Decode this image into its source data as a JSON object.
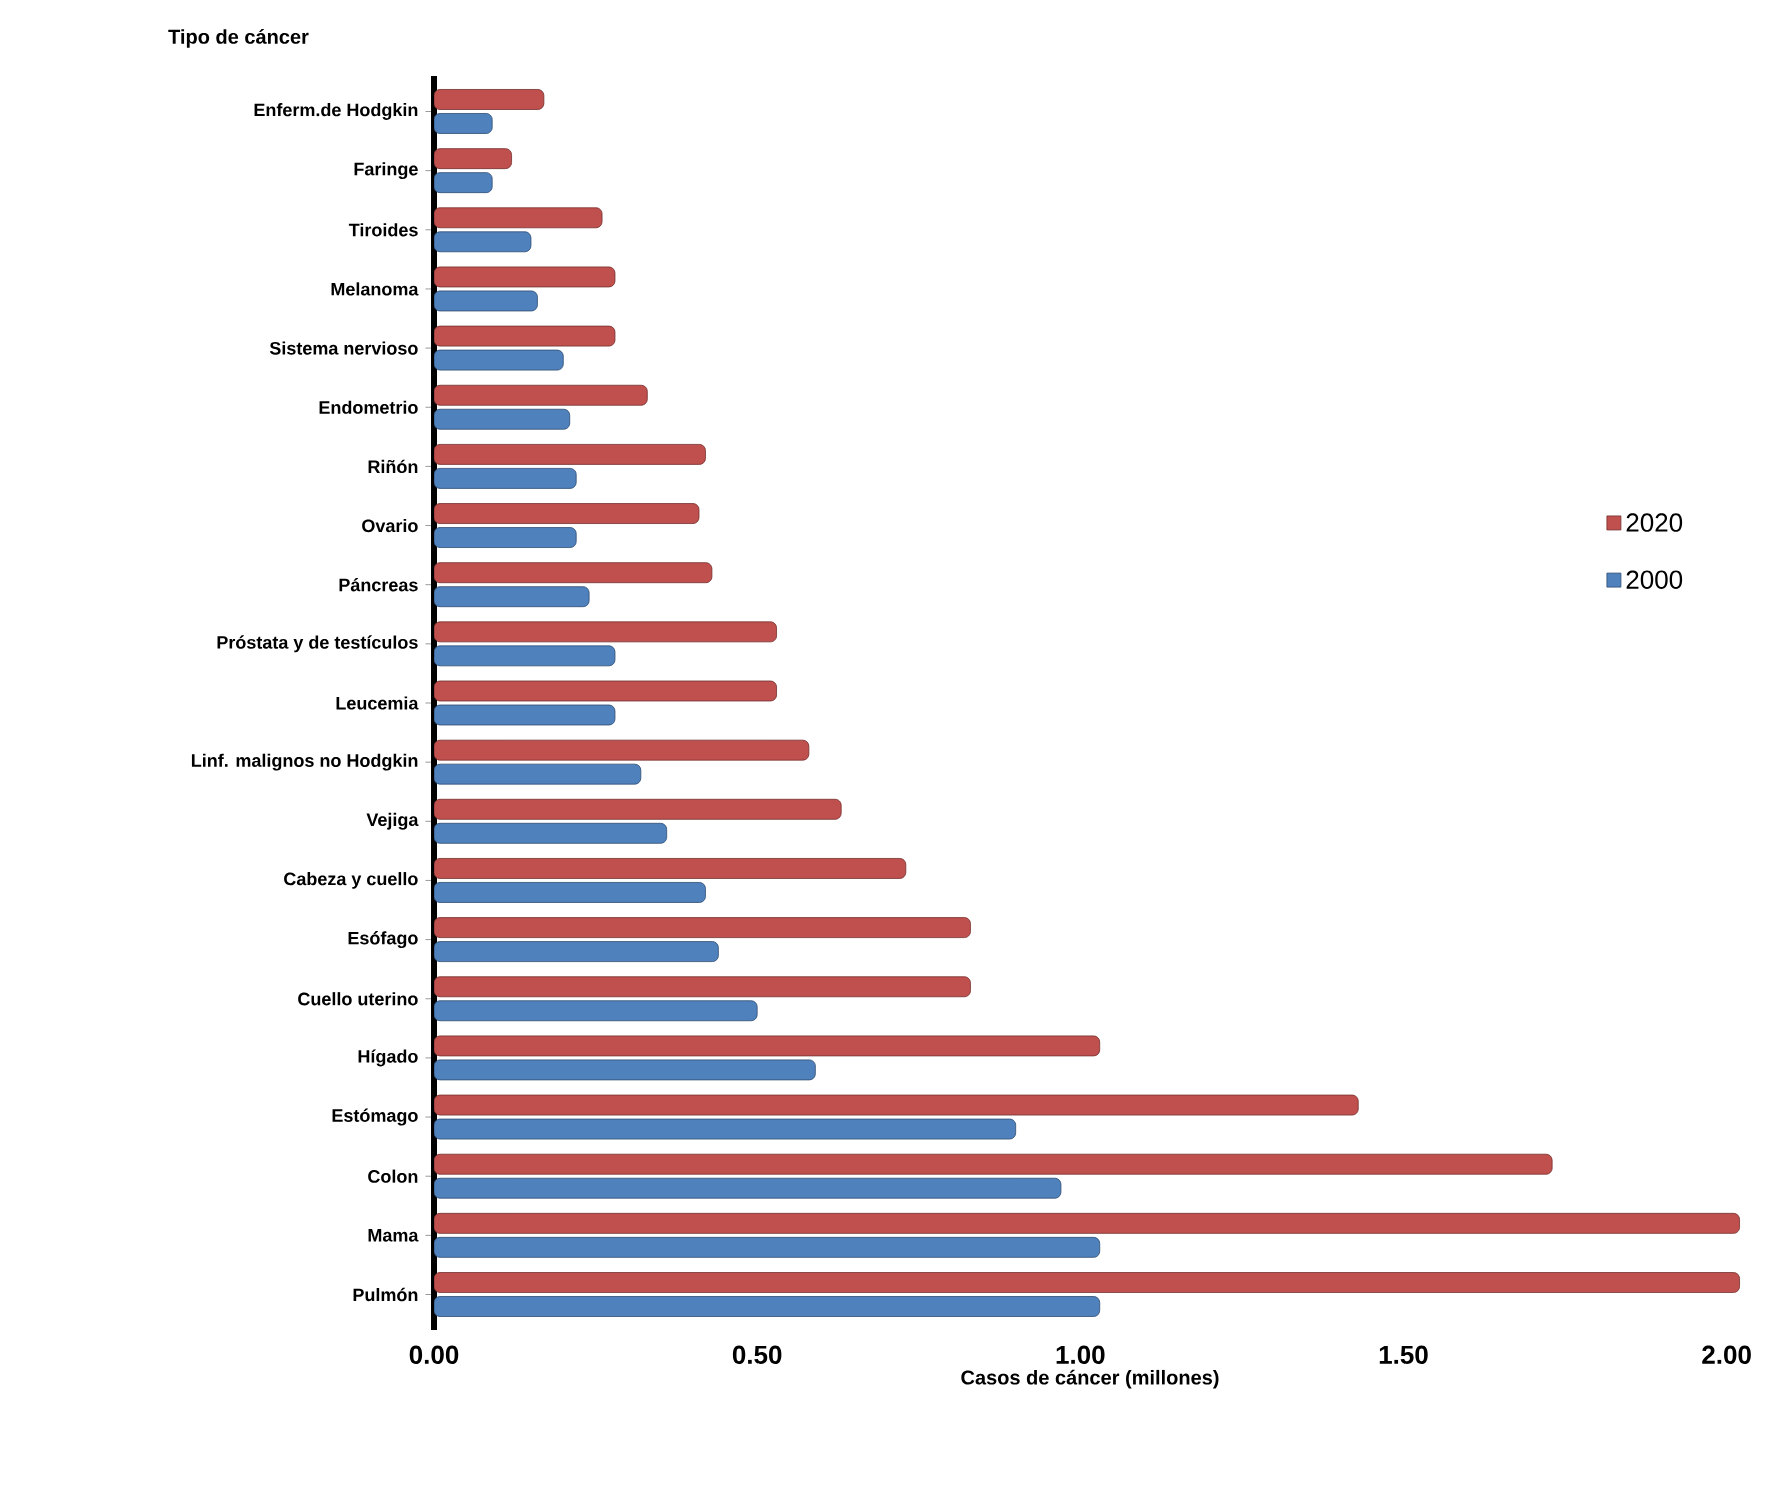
{
  "chart_data": {
    "type": "bar",
    "orientation": "horizontal",
    "ylabel": "Tipo de cáncer",
    "xlabel": "Casos de cáncer (millones)",
    "categories": [
      "Enferm.de Hodgkin",
      "Faringe",
      "Tiroides",
      "Melanoma",
      "Sistema nervioso",
      "Endometrio",
      "Riñón",
      "Ovario",
      "Páncreas",
      "Próstata y de testículos",
      "Leucemia",
      "Linf. malignos no Hodgkin",
      "Vejiga",
      "Cabeza y cuello",
      "Esófago",
      "Cuello uterino",
      "Hígado",
      "Estómago",
      "Colon",
      "Mama",
      "Pulmón"
    ],
    "series": [
      {
        "name": "2020",
        "color": "#c0504d",
        "values": [
          0.17,
          0.12,
          0.26,
          0.28,
          0.28,
          0.33,
          0.42,
          0.41,
          0.43,
          0.53,
          0.53,
          0.58,
          0.63,
          0.73,
          0.83,
          0.83,
          1.03,
          1.43,
          1.73,
          2.02,
          2.02
        ]
      },
      {
        "name": "2000",
        "color": "#4f81bd",
        "values": [
          0.09,
          0.09,
          0.15,
          0.16,
          0.2,
          0.21,
          0.22,
          0.22,
          0.24,
          0.28,
          0.28,
          0.32,
          0.36,
          0.42,
          0.44,
          0.5,
          0.59,
          0.9,
          0.97,
          1.03,
          1.03
        ]
      }
    ],
    "xlim": [
      0,
      2.03
    ],
    "xticks": [
      {
        "value": 0,
        "label": "0.00"
      },
      {
        "value": 0.5,
        "label": "0.50"
      },
      {
        "value": 1,
        "label": "1.00"
      },
      {
        "value": 1.5,
        "label": "1.50"
      },
      {
        "value": 2,
        "label": "2.00"
      }
    ],
    "grid": false,
    "legend": "right"
  }
}
